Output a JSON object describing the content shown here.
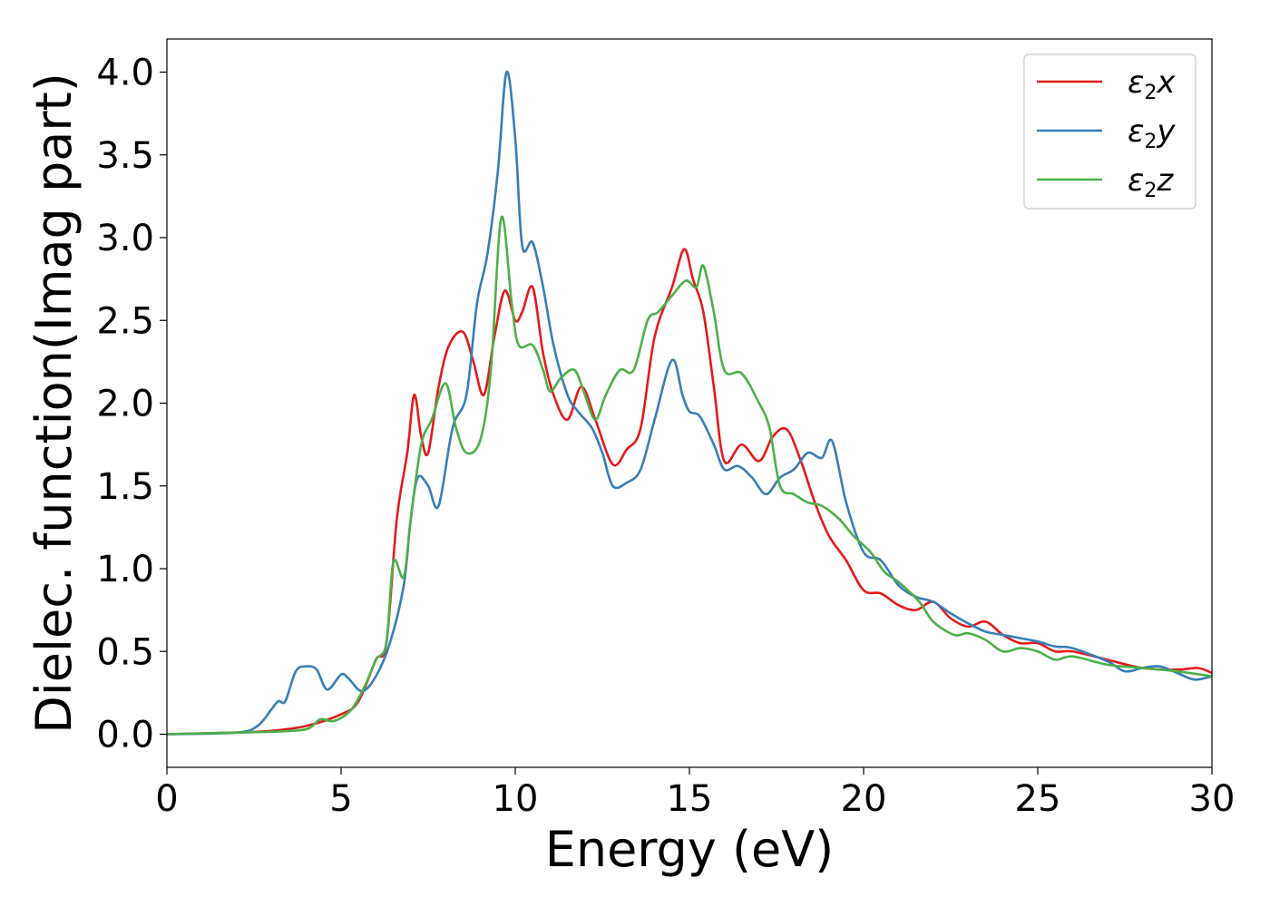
{
  "chart_data": {
    "type": "line",
    "title": "",
    "xlabel": "Energy (eV)",
    "ylabel": "Dielec. function(Imag part)",
    "xlim": [
      0,
      30
    ],
    "ylim": [
      -0.2,
      4.2
    ],
    "xticks": [
      0,
      5,
      10,
      15,
      20,
      25,
      30
    ],
    "xtick_labels": [
      "0",
      "5",
      "10",
      "15",
      "20",
      "25",
      "30"
    ],
    "yticks": [
      0.0,
      0.5,
      1.0,
      1.5,
      2.0,
      2.5,
      3.0,
      3.5,
      4.0
    ],
    "ytick_labels": [
      "0.0",
      "0.5",
      "1.0",
      "1.5",
      "2.0",
      "2.5",
      "3.0",
      "3.5",
      "4.0"
    ],
    "grid": false,
    "legend_position": "top-right",
    "series": [
      {
        "name": "ε₂x",
        "legend": {
          "base": "ε",
          "sub": "2",
          "suffix": "x"
        },
        "color": "#e41a1c",
        "points": [
          [
            0,
            0.0
          ],
          [
            2,
            0.01
          ],
          [
            3,
            0.02
          ],
          [
            4,
            0.05
          ],
          [
            5,
            0.12
          ],
          [
            5.5,
            0.2
          ],
          [
            6,
            0.45
          ],
          [
            6.3,
            0.55
          ],
          [
            6.6,
            1.3
          ],
          [
            6.9,
            1.7
          ],
          [
            7.1,
            2.05
          ],
          [
            7.3,
            1.8
          ],
          [
            7.5,
            1.7
          ],
          [
            7.8,
            2.1
          ],
          [
            8.1,
            2.35
          ],
          [
            8.5,
            2.43
          ],
          [
            8.8,
            2.25
          ],
          [
            9.1,
            2.05
          ],
          [
            9.4,
            2.4
          ],
          [
            9.7,
            2.68
          ],
          [
            10.0,
            2.5
          ],
          [
            10.2,
            2.55
          ],
          [
            10.5,
            2.7
          ],
          [
            10.8,
            2.3
          ],
          [
            11.1,
            2.05
          ],
          [
            11.5,
            1.9
          ],
          [
            11.9,
            2.1
          ],
          [
            12.3,
            1.9
          ],
          [
            12.8,
            1.63
          ],
          [
            13.2,
            1.72
          ],
          [
            13.6,
            1.85
          ],
          [
            14.0,
            2.4
          ],
          [
            14.5,
            2.7
          ],
          [
            14.85,
            2.93
          ],
          [
            15.1,
            2.75
          ],
          [
            15.4,
            2.55
          ],
          [
            15.7,
            2.1
          ],
          [
            16.0,
            1.65
          ],
          [
            16.5,
            1.75
          ],
          [
            17.0,
            1.65
          ],
          [
            17.4,
            1.8
          ],
          [
            17.8,
            1.84
          ],
          [
            18.2,
            1.65
          ],
          [
            18.6,
            1.4
          ],
          [
            19.0,
            1.2
          ],
          [
            19.5,
            1.05
          ],
          [
            20.0,
            0.87
          ],
          [
            20.5,
            0.85
          ],
          [
            21.0,
            0.78
          ],
          [
            21.5,
            0.75
          ],
          [
            22.0,
            0.8
          ],
          [
            22.5,
            0.7
          ],
          [
            23.0,
            0.65
          ],
          [
            23.5,
            0.68
          ],
          [
            24.0,
            0.6
          ],
          [
            24.5,
            0.55
          ],
          [
            25.0,
            0.55
          ],
          [
            25.5,
            0.5
          ],
          [
            26.0,
            0.5
          ],
          [
            27.0,
            0.45
          ],
          [
            28.0,
            0.4
          ],
          [
            29.0,
            0.39
          ],
          [
            29.6,
            0.4
          ],
          [
            30.0,
            0.37
          ]
        ]
      },
      {
        "name": "ε₂y",
        "legend": {
          "base": "ε",
          "sub": "2",
          "suffix": "y"
        },
        "color": "#377eb8",
        "points": [
          [
            0,
            0.0
          ],
          [
            2,
            0.01
          ],
          [
            2.6,
            0.05
          ],
          [
            3.0,
            0.15
          ],
          [
            3.2,
            0.2
          ],
          [
            3.4,
            0.2
          ],
          [
            3.7,
            0.38
          ],
          [
            4.0,
            0.41
          ],
          [
            4.3,
            0.39
          ],
          [
            4.6,
            0.27
          ],
          [
            5.0,
            0.36
          ],
          [
            5.2,
            0.34
          ],
          [
            5.6,
            0.26
          ],
          [
            6.0,
            0.35
          ],
          [
            6.4,
            0.55
          ],
          [
            6.8,
            0.9
          ],
          [
            7.0,
            1.3
          ],
          [
            7.2,
            1.55
          ],
          [
            7.5,
            1.5
          ],
          [
            7.8,
            1.38
          ],
          [
            8.2,
            1.85
          ],
          [
            8.6,
            2.05
          ],
          [
            8.9,
            2.6
          ],
          [
            9.2,
            2.9
          ],
          [
            9.5,
            3.4
          ],
          [
            9.75,
            4.0
          ],
          [
            10.0,
            3.6
          ],
          [
            10.2,
            2.95
          ],
          [
            10.5,
            2.97
          ],
          [
            10.8,
            2.7
          ],
          [
            11.1,
            2.35
          ],
          [
            11.5,
            2.05
          ],
          [
            11.8,
            1.95
          ],
          [
            12.2,
            1.85
          ],
          [
            12.5,
            1.7
          ],
          [
            12.8,
            1.5
          ],
          [
            13.2,
            1.52
          ],
          [
            13.6,
            1.6
          ],
          [
            14.0,
            1.9
          ],
          [
            14.5,
            2.26
          ],
          [
            14.8,
            2.05
          ],
          [
            15.0,
            1.95
          ],
          [
            15.3,
            1.92
          ],
          [
            15.7,
            1.75
          ],
          [
            16.0,
            1.6
          ],
          [
            16.4,
            1.62
          ],
          [
            16.8,
            1.55
          ],
          [
            17.2,
            1.45
          ],
          [
            17.6,
            1.55
          ],
          [
            18.0,
            1.6
          ],
          [
            18.4,
            1.7
          ],
          [
            18.8,
            1.67
          ],
          [
            19.1,
            1.77
          ],
          [
            19.5,
            1.4
          ],
          [
            20.0,
            1.1
          ],
          [
            20.5,
            1.05
          ],
          [
            21.0,
            0.9
          ],
          [
            21.5,
            0.83
          ],
          [
            22.0,
            0.8
          ],
          [
            22.5,
            0.73
          ],
          [
            23.0,
            0.67
          ],
          [
            23.5,
            0.62
          ],
          [
            24.0,
            0.6
          ],
          [
            24.5,
            0.58
          ],
          [
            25.0,
            0.56
          ],
          [
            25.5,
            0.53
          ],
          [
            26.0,
            0.52
          ],
          [
            27.0,
            0.44
          ],
          [
            27.5,
            0.38
          ],
          [
            28.0,
            0.4
          ],
          [
            28.5,
            0.41
          ],
          [
            29.0,
            0.37
          ],
          [
            29.5,
            0.33
          ],
          [
            30.0,
            0.35
          ]
        ]
      },
      {
        "name": "ε₂z",
        "legend": {
          "base": "ε",
          "sub": "2",
          "suffix": "z"
        },
        "color": "#4daf4a",
        "points": [
          [
            0,
            0.0
          ],
          [
            2,
            0.01
          ],
          [
            3,
            0.015
          ],
          [
            4,
            0.03
          ],
          [
            4.4,
            0.09
          ],
          [
            4.8,
            0.08
          ],
          [
            5.3,
            0.15
          ],
          [
            5.7,
            0.3
          ],
          [
            6.0,
            0.45
          ],
          [
            6.3,
            0.55
          ],
          [
            6.5,
            1.04
          ],
          [
            6.8,
            0.95
          ],
          [
            7.0,
            1.3
          ],
          [
            7.3,
            1.75
          ],
          [
            7.6,
            1.9
          ],
          [
            8.0,
            2.12
          ],
          [
            8.3,
            1.85
          ],
          [
            8.6,
            1.7
          ],
          [
            9.0,
            1.78
          ],
          [
            9.3,
            2.2
          ],
          [
            9.6,
            3.12
          ],
          [
            9.9,
            2.6
          ],
          [
            10.1,
            2.35
          ],
          [
            10.5,
            2.35
          ],
          [
            10.8,
            2.2
          ],
          [
            11.0,
            2.07
          ],
          [
            11.3,
            2.15
          ],
          [
            11.7,
            2.2
          ],
          [
            12.0,
            2.05
          ],
          [
            12.3,
            1.9
          ],
          [
            12.6,
            2.05
          ],
          [
            13.0,
            2.2
          ],
          [
            13.4,
            2.2
          ],
          [
            13.8,
            2.5
          ],
          [
            14.1,
            2.55
          ],
          [
            14.5,
            2.65
          ],
          [
            14.9,
            2.74
          ],
          [
            15.2,
            2.7
          ],
          [
            15.4,
            2.83
          ],
          [
            15.7,
            2.55
          ],
          [
            16.0,
            2.2
          ],
          [
            16.5,
            2.18
          ],
          [
            17.0,
            2.0
          ],
          [
            17.3,
            1.85
          ],
          [
            17.6,
            1.5
          ],
          [
            18.0,
            1.45
          ],
          [
            18.4,
            1.4
          ],
          [
            18.8,
            1.38
          ],
          [
            19.3,
            1.3
          ],
          [
            19.7,
            1.2
          ],
          [
            20.2,
            1.1
          ],
          [
            20.6,
            0.98
          ],
          [
            21.0,
            0.92
          ],
          [
            21.6,
            0.8
          ],
          [
            22.0,
            0.68
          ],
          [
            22.6,
            0.6
          ],
          [
            23.0,
            0.61
          ],
          [
            23.5,
            0.57
          ],
          [
            24.0,
            0.5
          ],
          [
            24.5,
            0.52
          ],
          [
            25.0,
            0.5
          ],
          [
            25.5,
            0.45
          ],
          [
            26.0,
            0.47
          ],
          [
            27.0,
            0.42
          ],
          [
            28.0,
            0.4
          ],
          [
            29.0,
            0.38
          ],
          [
            30.0,
            0.35
          ]
        ]
      }
    ]
  }
}
